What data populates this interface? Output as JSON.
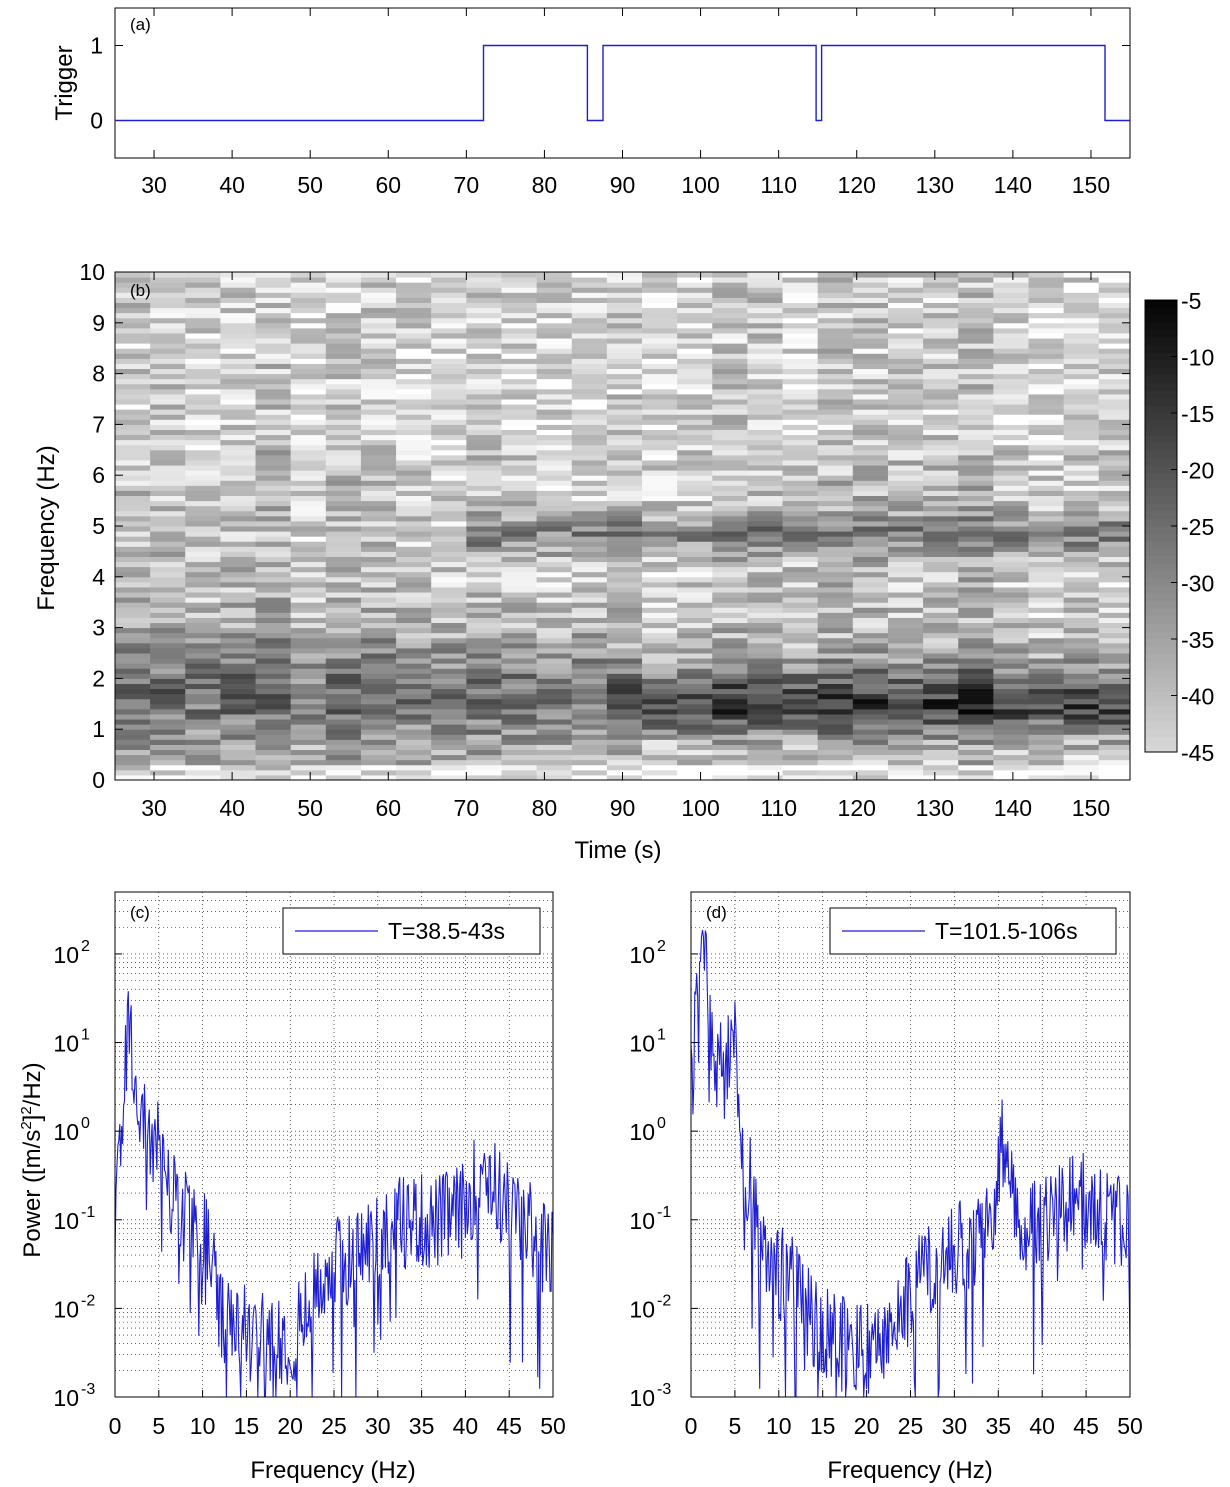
{
  "chart_data": [
    {
      "panel": "(a)",
      "type": "line",
      "xlabel": "",
      "ylabel": "Trigger",
      "xlim": [
        25,
        155
      ],
      "ylim": [
        -0.5,
        1.5
      ],
      "xticks": [
        30,
        40,
        50,
        60,
        70,
        80,
        90,
        100,
        110,
        120,
        130,
        140,
        150
      ],
      "yticks": [
        0,
        1
      ],
      "grid": false,
      "series": [
        {
          "color": "#1f1fd2",
          "x": [
            25,
            72.2,
            72.2,
            85.5,
            85.5,
            87.5,
            87.5,
            114.8,
            114.8,
            115.5,
            115.5,
            151.8,
            151.8,
            155
          ],
          "y": [
            0,
            0,
            1,
            1,
            0,
            0,
            1,
            1,
            0,
            0,
            1,
            1,
            0,
            0
          ]
        }
      ]
    },
    {
      "panel": "(b)",
      "type": "heatmap",
      "xlabel": "Time (s)",
      "ylabel": "Frequency (Hz)",
      "xlim": [
        25,
        155
      ],
      "ylim": [
        0,
        10
      ],
      "xticks": [
        30,
        40,
        50,
        60,
        70,
        80,
        90,
        100,
        110,
        120,
        130,
        140,
        150
      ],
      "yticks": [
        0,
        1,
        2,
        3,
        4,
        5,
        6,
        7,
        8,
        9,
        10
      ],
      "colormap": "gray (white = -45, black = -5)",
      "colorbar": {
        "range": [
          -45,
          -5
        ],
        "ticks": [
          -5,
          -10,
          -15,
          -20,
          -25,
          -30,
          -35,
          -40,
          -45
        ]
      },
      "time_bin_s": 4.5,
      "freq_bin_hz": 0.1,
      "description_levels": {
        "band_1_to_2.5Hz_before_72s": -22,
        "band_1_to_2Hz_after_88s": -8,
        "band_4.5_to_5.2Hz_after_88s": -12,
        "background": -33
      }
    },
    {
      "panel": "(c)",
      "type": "line",
      "xlabel": "Frequency (Hz)",
      "ylabel": "Power ([m/s²]²/Hz)",
      "xscale": "log-y",
      "xlim": [
        0,
        50
      ],
      "ylim": [
        0.001,
        500
      ],
      "yscale": "log",
      "xticks": [
        0,
        5,
        10,
        15,
        20,
        25,
        30,
        35,
        40,
        45,
        50
      ],
      "yticks": [
        "10^-3",
        "10^-2",
        "10^-1",
        "10^0",
        "10^1",
        "10^2"
      ],
      "grid": true,
      "legend": "top-right",
      "series": [
        {
          "name": "T=38.5-43s",
          "color": "#1f1fd2",
          "envelope": {
            "f": [
              0,
              0.5,
              1,
              1.5,
              2,
              2.5,
              3,
              4,
              5,
              6,
              7,
              8,
              9,
              10,
              11,
              12,
              14,
              16,
              18,
              20,
              22,
              24,
              26,
              28,
              30,
              32,
              34,
              36,
              38,
              40,
              42,
              44,
              46,
              48,
              50
            ],
            "p": [
              0.1,
              0.6,
              3,
              25,
              8,
              2,
              1.5,
              0.8,
              1.2,
              0.3,
              0.15,
              0.12,
              0.1,
              0.09,
              0.05,
              0.008,
              0.006,
              0.006,
              0.006,
              0.005,
              0.01,
              0.03,
              0.04,
              0.05,
              0.08,
              0.1,
              0.12,
              0.1,
              0.12,
              0.15,
              0.5,
              0.2,
              0.12,
              0.08,
              0.04
            ]
          }
        }
      ]
    },
    {
      "panel": "(d)",
      "type": "line",
      "xlabel": "Frequency (Hz)",
      "ylabel": "",
      "xlim": [
        0,
        50
      ],
      "ylim": [
        0.001,
        500
      ],
      "yscale": "log",
      "xticks": [
        0,
        5,
        10,
        15,
        20,
        25,
        30,
        35,
        40,
        45,
        50
      ],
      "yticks": [
        "10^-3",
        "10^-2",
        "10^-1",
        "10^0",
        "10^1",
        "10^2"
      ],
      "grid": true,
      "legend": "top-right",
      "series": [
        {
          "name": "T=101.5-106s",
          "color": "#1f1fd2",
          "envelope": {
            "f": [
              0,
              0.5,
              1,
              1.5,
              2,
              2.5,
              3,
              3.5,
              4,
              4.5,
              5,
              5.5,
              6,
              7,
              8,
              9,
              10,
              12,
              14,
              16,
              18,
              20,
              22,
              24,
              26,
              28,
              30,
              32,
              34,
              35.5,
              36,
              38,
              40,
              42,
              44,
              46,
              48,
              50
            ],
            "p": [
              3,
              15,
              60,
              170,
              40,
              8,
              5,
              6,
              4,
              12,
              25,
              1.5,
              0.4,
              0.25,
              0.08,
              0.05,
              0.03,
              0.02,
              0.008,
              0.005,
              0.004,
              0.004,
              0.006,
              0.01,
              0.03,
              0.04,
              0.06,
              0.05,
              0.1,
              0.8,
              0.3,
              0.1,
              0.12,
              0.15,
              0.2,
              0.15,
              0.12,
              0.08
            ]
          }
        }
      ]
    }
  ],
  "labels": {
    "a_tag": "(a)",
    "b_tag": "(b)",
    "c_tag": "(c)",
    "d_tag": "(d)",
    "a_ylabel": "Trigger",
    "b_ylabel": "Frequency (Hz)",
    "b_xlabel": "Time (s)",
    "c_ylabel": "Power ([m/s",
    "cd_xlabel": "Frequency (Hz)",
    "c_legend": "T=38.5-43s",
    "d_legend": "T=101.5-106s"
  }
}
